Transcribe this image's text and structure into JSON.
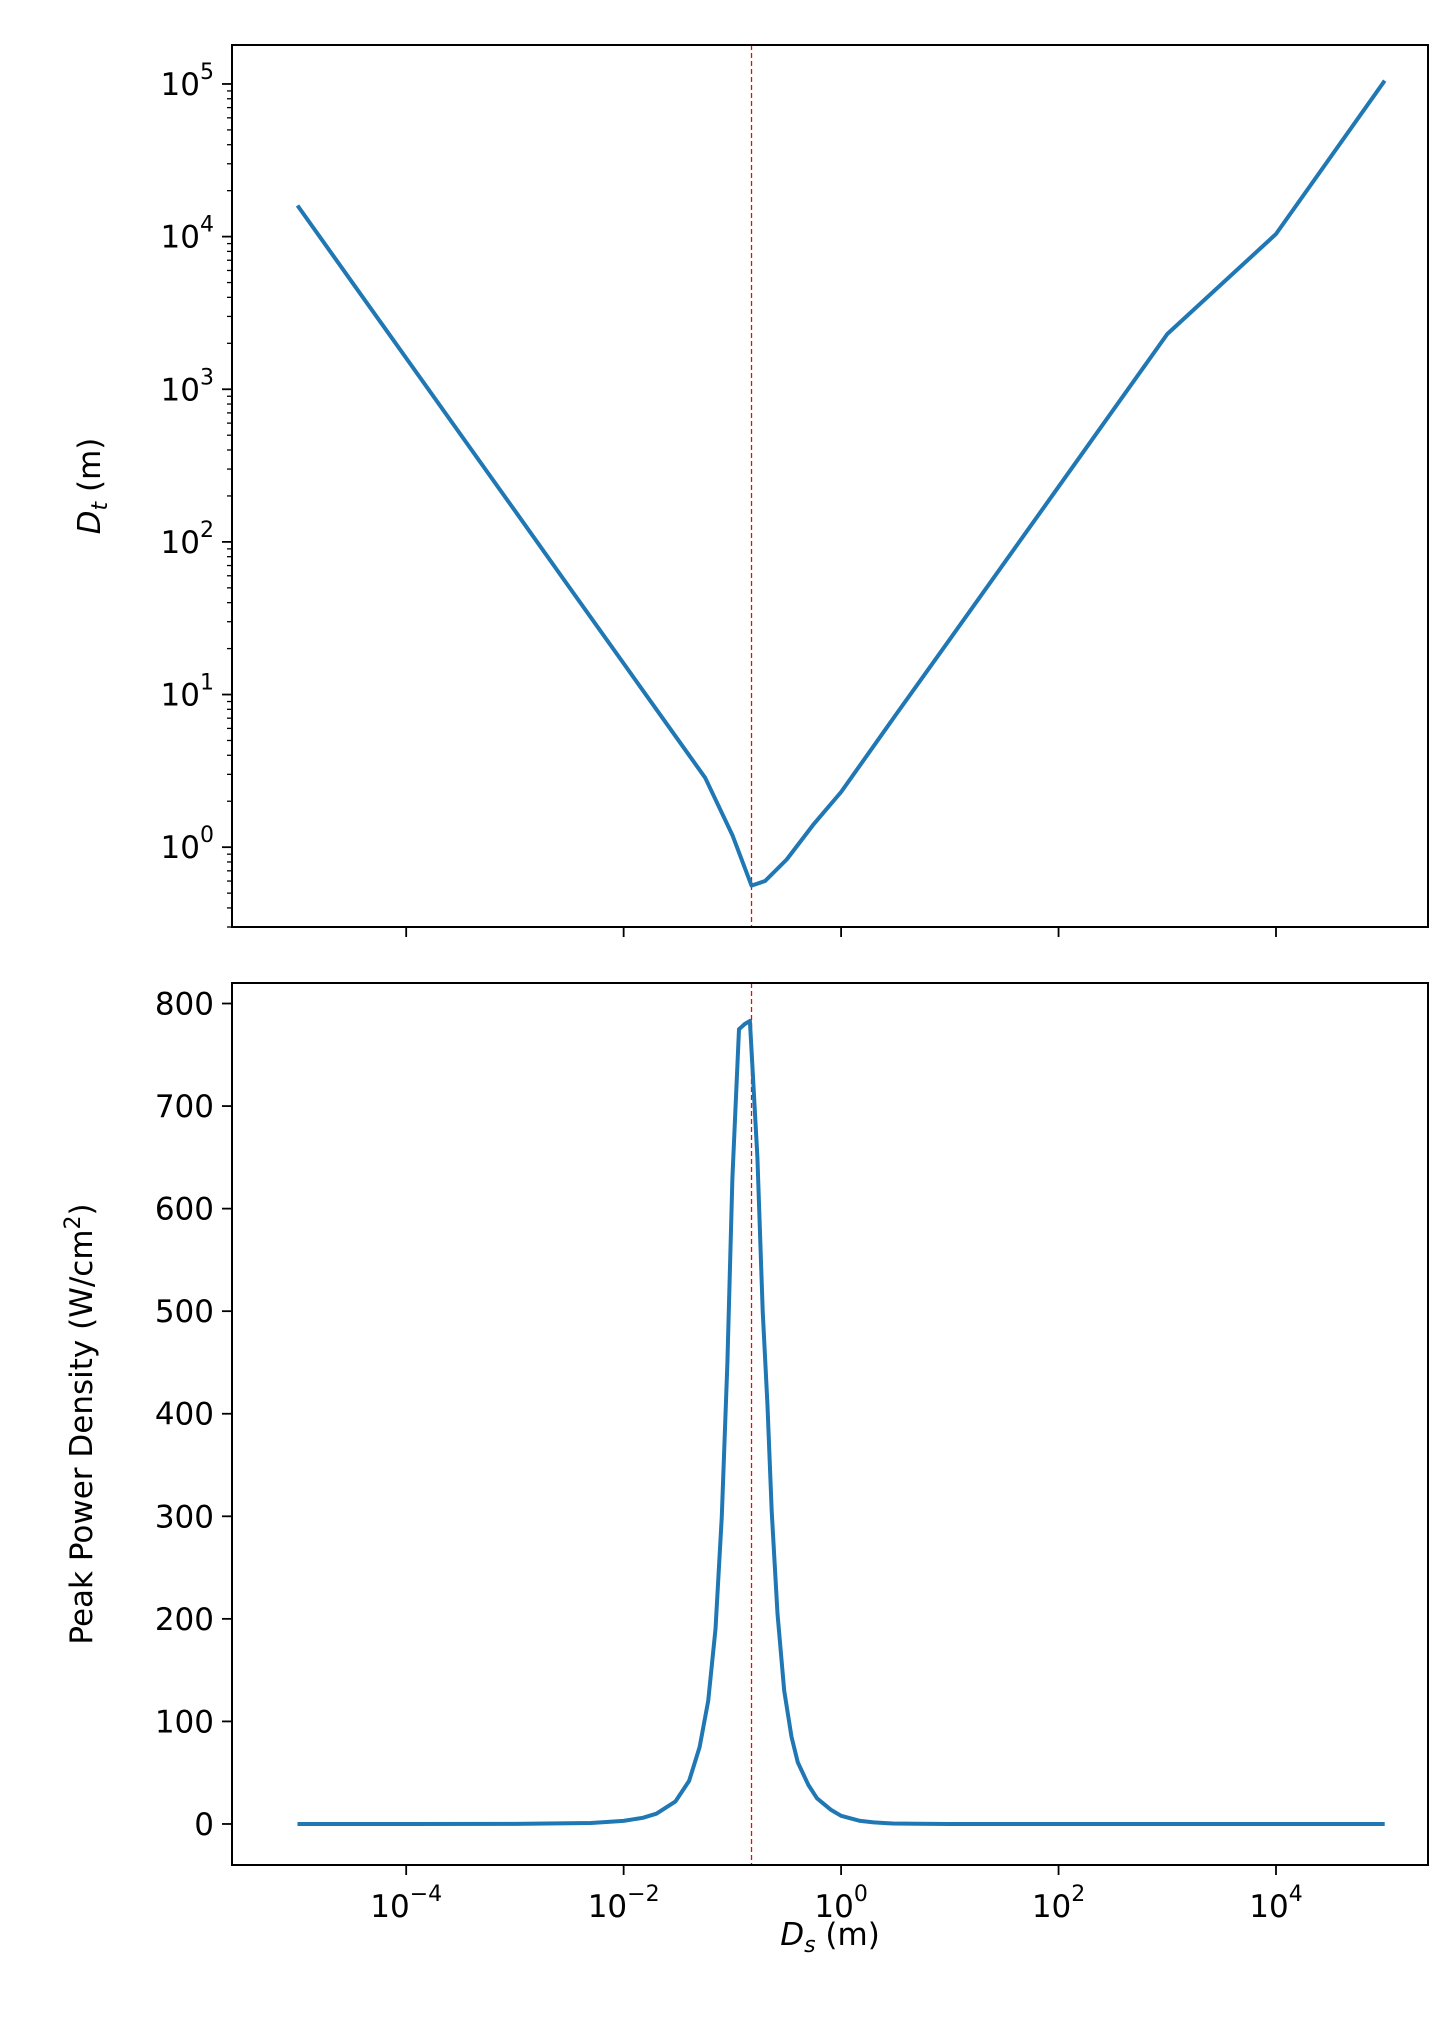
{
  "chart_data": [
    {
      "type": "line",
      "xscale": "log",
      "yscale": "log",
      "xlim": [
        2.5e-06,
        250000
      ],
      "ylim": [
        0.3,
        180000
      ],
      "xlabel": "",
      "ylabel_main": "D",
      "ylabel_sub": "t",
      "ylabel_unit": " (m)",
      "y_ticks": [
        {
          "value": 1,
          "base": "10",
          "exp": "0"
        },
        {
          "value": 10,
          "base": "10",
          "exp": "1"
        },
        {
          "value": 100,
          "base": "10",
          "exp": "2"
        },
        {
          "value": 1000,
          "base": "10",
          "exp": "3"
        },
        {
          "value": 10000,
          "base": "10",
          "exp": "4"
        },
        {
          "value": 100000,
          "base": "10",
          "exp": "5"
        }
      ],
      "vline_x": 0.15,
      "vline_color": "#ff0000",
      "line_color": "#1f77b4",
      "series": [
        {
          "x": [
            1e-05,
            3.16e-05,
            0.0001,
            0.000316,
            0.001,
            0.00316,
            0.01,
            0.0316,
            0.0562,
            0.1,
            0.15,
            0.2,
            0.316,
            0.562,
            1,
            3.16,
            10,
            100,
            1000,
            10000,
            100000
          ],
          "y": [
            16000,
            5060,
            1600,
            506,
            160,
            50.6,
            16,
            5.06,
            2.85,
            1.2,
            0.56,
            0.6,
            0.83,
            1.42,
            2.3,
            7.3,
            23,
            230,
            2300,
            10400,
            105000
          ]
        }
      ]
    },
    {
      "type": "line",
      "xscale": "log",
      "yscale": "linear",
      "xlim": [
        2.5e-06,
        250000
      ],
      "ylim": [
        -40,
        820
      ],
      "xlabel_main": "D",
      "xlabel_sub": "s",
      "xlabel_unit": " (m)",
      "ylabel": "Peak Power Density (W/cm",
      "ylabel_sup": "2",
      "ylabel_close": ")",
      "x_ticks": [
        {
          "value": 0.0001,
          "base": "10",
          "exp": "−4"
        },
        {
          "value": 0.01,
          "base": "10",
          "exp": "−2"
        },
        {
          "value": 1,
          "base": "10",
          "exp": "0"
        },
        {
          "value": 100,
          "base": "10",
          "exp": "2"
        },
        {
          "value": 10000,
          "base": "10",
          "exp": "4"
        }
      ],
      "y_ticks": [
        0,
        100,
        200,
        300,
        400,
        500,
        600,
        700,
        800
      ],
      "vline_x": 0.15,
      "vline_color": "#ff0000",
      "line_color": "#1f77b4",
      "series": [
        {
          "x": [
            1e-05,
            0.0001,
            0.001,
            0.005,
            0.01,
            0.015,
            0.02,
            0.03,
            0.04,
            0.05,
            0.06,
            0.07,
            0.08,
            0.09,
            0.1,
            0.115,
            0.13,
            0.145,
            0.17,
            0.19,
            0.21,
            0.23,
            0.26,
            0.3,
            0.35,
            0.4,
            0.5,
            0.6,
            0.8,
            1.0,
            1.5,
            2,
            3,
            5,
            10,
            100,
            100000
          ],
          "y": [
            0,
            0,
            0.1,
            1,
            3,
            6,
            10,
            22,
            42,
            75,
            120,
            190,
            300,
            450,
            630,
            775,
            780,
            783,
            650,
            500,
            410,
            305,
            205,
            130,
            85,
            60,
            38,
            25,
            14,
            8,
            3,
            1.5,
            0.5,
            0.2,
            0,
            0,
            0
          ]
        }
      ]
    }
  ]
}
